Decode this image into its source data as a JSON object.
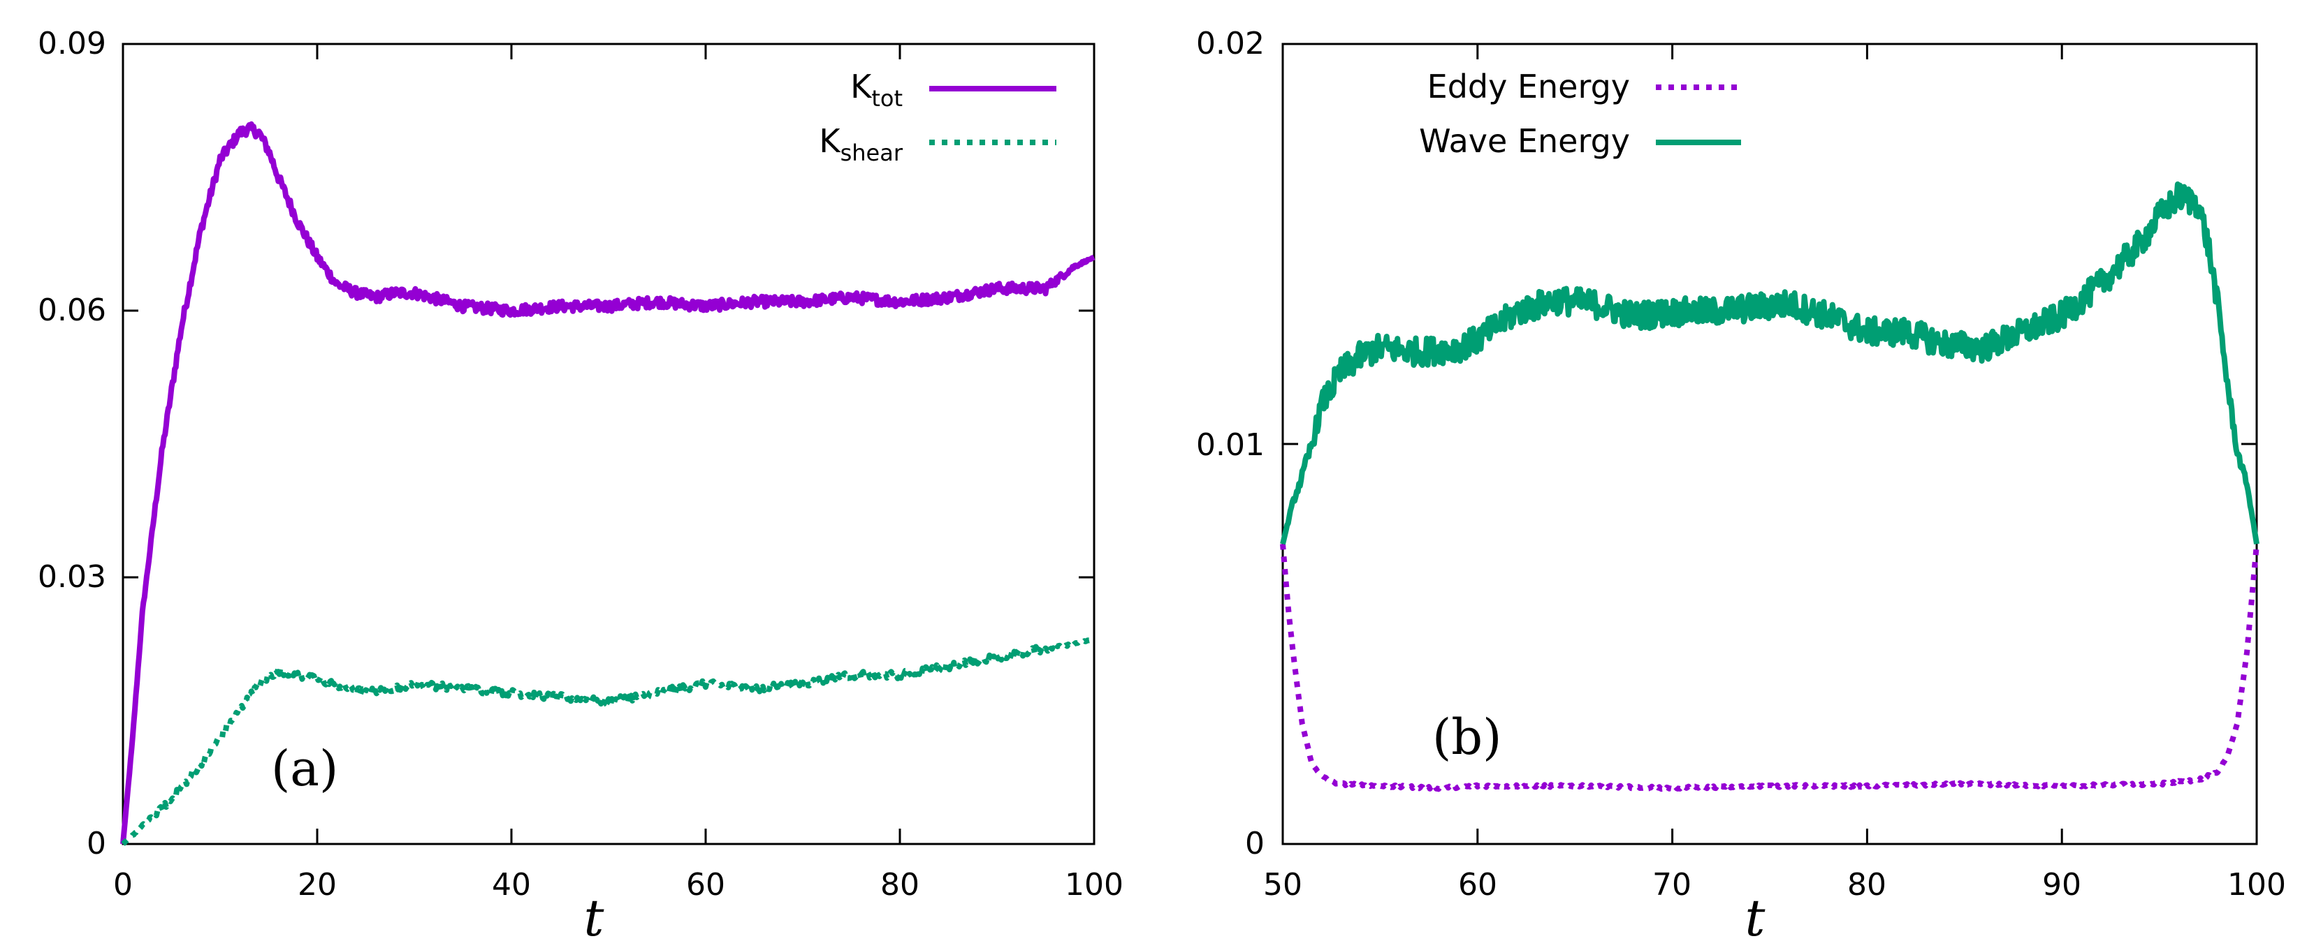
{
  "chart_data": [
    {
      "type": "line",
      "panel_label": "(a)",
      "xlabel": "t",
      "ylabel": "",
      "xlim": [
        0,
        100
      ],
      "ylim": [
        0,
        0.09
      ],
      "xticks": [
        0,
        20,
        40,
        60,
        80,
        100
      ],
      "xtick_labels": [
        "0",
        "20",
        "40",
        "60",
        "80",
        "100"
      ],
      "yticks": [
        0,
        0.03,
        0.06,
        0.09
      ],
      "ytick_labels": [
        "0",
        "0.03",
        "0.06",
        "0.09"
      ],
      "legend_position": "top-right",
      "series": [
        {
          "name": "K_tot",
          "label_main": "K",
          "label_sub": "tot",
          "style": "solid",
          "color": "#9400D3",
          "jitter": 0.0012,
          "x": [
            0,
            1,
            2,
            4,
            6,
            8,
            10,
            12,
            13,
            14,
            15,
            16,
            18,
            20,
            22,
            24,
            26,
            28,
            30,
            35,
            40,
            45,
            50,
            55,
            60,
            65,
            70,
            75,
            80,
            85,
            90,
            95,
            98,
            100
          ],
          "y": [
            0,
            0.012,
            0.026,
            0.044,
            0.058,
            0.069,
            0.077,
            0.08,
            0.0805,
            0.08,
            0.078,
            0.075,
            0.07,
            0.066,
            0.063,
            0.062,
            0.0615,
            0.062,
            0.062,
            0.0605,
            0.06,
            0.0605,
            0.0605,
            0.061,
            0.0605,
            0.061,
            0.061,
            0.0615,
            0.061,
            0.0615,
            0.0625,
            0.0625,
            0.065,
            0.066
          ]
        },
        {
          "name": "K_shear",
          "label_main": "K",
          "label_sub": "shear",
          "style": "dotted",
          "color": "#009E73",
          "jitter": 0.0008,
          "x": [
            0,
            2,
            5,
            8,
            10,
            12,
            14,
            16,
            18,
            20,
            25,
            30,
            35,
            40,
            45,
            50,
            55,
            60,
            65,
            70,
            75,
            80,
            85,
            90,
            95,
            100
          ],
          "y": [
            0,
            0.002,
            0.005,
            0.009,
            0.012,
            0.015,
            0.018,
            0.0195,
            0.019,
            0.0185,
            0.017,
            0.018,
            0.0175,
            0.017,
            0.0165,
            0.016,
            0.017,
            0.018,
            0.0175,
            0.018,
            0.019,
            0.019,
            0.02,
            0.021,
            0.022,
            0.023
          ]
        }
      ]
    },
    {
      "type": "line",
      "panel_label": "(b)",
      "xlabel": "t",
      "ylabel": "",
      "xlim": [
        50,
        100
      ],
      "ylim": [
        0,
        0.02
      ],
      "xticks": [
        50,
        60,
        70,
        80,
        90,
        100
      ],
      "xtick_labels": [
        "50",
        "60",
        "70",
        "80",
        "90",
        "100"
      ],
      "yticks": [
        0,
        0.01,
        0.02
      ],
      "ytick_labels": [
        "0",
        "0.01",
        "0.02"
      ],
      "legend_position": "top-left",
      "series": [
        {
          "name": "Eddy Energy",
          "label_main": "Eddy Energy",
          "label_sub": "",
          "style": "dotted",
          "color": "#9400D3",
          "jitter": 6e-05,
          "x": [
            50,
            50.3,
            50.6,
            51,
            51.5,
            52,
            52.5,
            53,
            55,
            58,
            60,
            65,
            70,
            75,
            80,
            85,
            90,
            95,
            97,
            98,
            98.5,
            99,
            99.5,
            100
          ],
          "y": [
            0.0075,
            0.0058,
            0.0045,
            0.003,
            0.002,
            0.0017,
            0.00155,
            0.0015,
            0.00145,
            0.0014,
            0.00145,
            0.00145,
            0.0014,
            0.00145,
            0.00145,
            0.0015,
            0.00145,
            0.0015,
            0.0016,
            0.0018,
            0.0022,
            0.003,
            0.0048,
            0.0075
          ]
        },
        {
          "name": "Wave Energy",
          "label_main": "Wave Energy",
          "label_sub": "",
          "style": "solid",
          "color": "#009E73",
          "jitter": 0.0007,
          "x": [
            50,
            50.5,
            51,
            51.5,
            52,
            53,
            54,
            55,
            57,
            59,
            60,
            62,
            64,
            66,
            68,
            70,
            72,
            74,
            76,
            78,
            80,
            82,
            84,
            86,
            88,
            90,
            92,
            94,
            95,
            96,
            97,
            97.5,
            98,
            98.5,
            99,
            99.5,
            100
          ],
          "y": [
            0.0075,
            0.0085,
            0.0092,
            0.01,
            0.011,
            0.0118,
            0.0122,
            0.0124,
            0.0123,
            0.0124,
            0.0126,
            0.0133,
            0.0136,
            0.0135,
            0.0132,
            0.0133,
            0.0133,
            0.0134,
            0.0135,
            0.0132,
            0.0128,
            0.0128,
            0.0125,
            0.0124,
            0.0128,
            0.0132,
            0.014,
            0.015,
            0.0157,
            0.0162,
            0.016,
            0.015,
            0.0135,
            0.0115,
            0.0098,
            0.009,
            0.0075
          ]
        }
      ]
    }
  ]
}
